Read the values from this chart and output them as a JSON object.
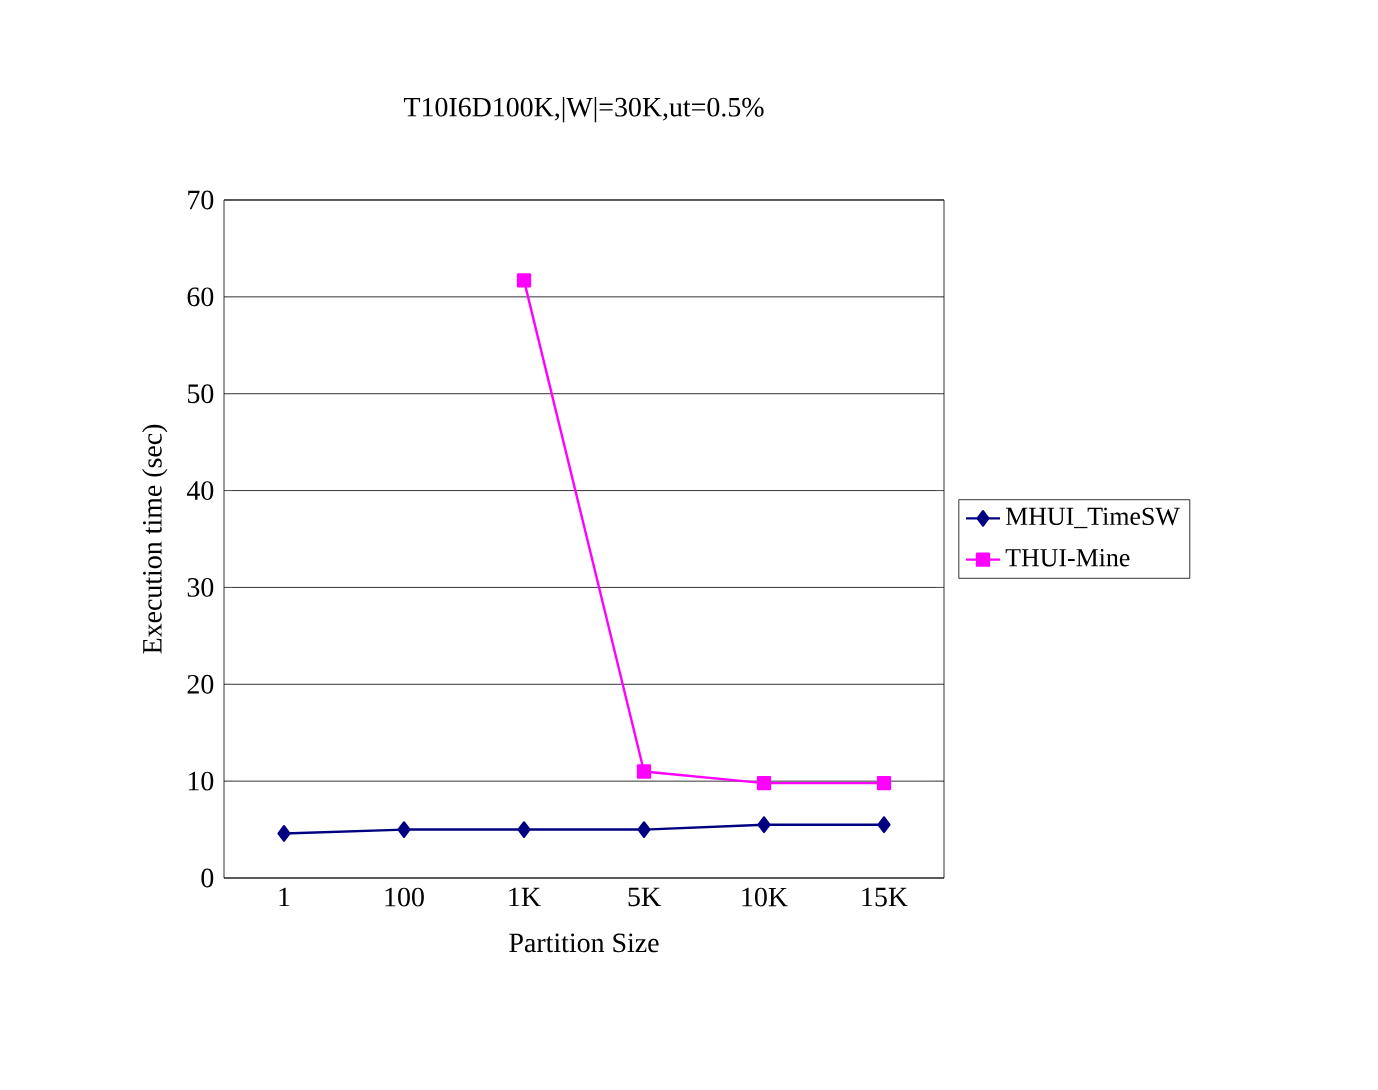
{
  "chart_data": {
    "type": "line",
    "title": "T10I6D100K,|W|=30K,ut=0.5%",
    "xlabel": "Partition Size",
    "ylabel": "Execution time (sec)",
    "categories": [
      "1",
      "100",
      "1K",
      "5K",
      "10K",
      "15K"
    ],
    "series": [
      {
        "name": "MHUI_TimeSW",
        "color": "#000080",
        "marker": "diamond",
        "values": [
          4.6,
          5.0,
          5.0,
          5.0,
          5.5,
          5.5
        ]
      },
      {
        "name": "THUI-Mine",
        "color": "#ff00ff",
        "marker": "square",
        "values": [
          null,
          null,
          61.7,
          11,
          9.8,
          9.8
        ]
      }
    ],
    "ylim": [
      0,
      70
    ],
    "yticks": [
      0,
      10,
      20,
      30,
      40,
      50,
      60,
      70
    ],
    "grid": "y",
    "legend": "right"
  }
}
